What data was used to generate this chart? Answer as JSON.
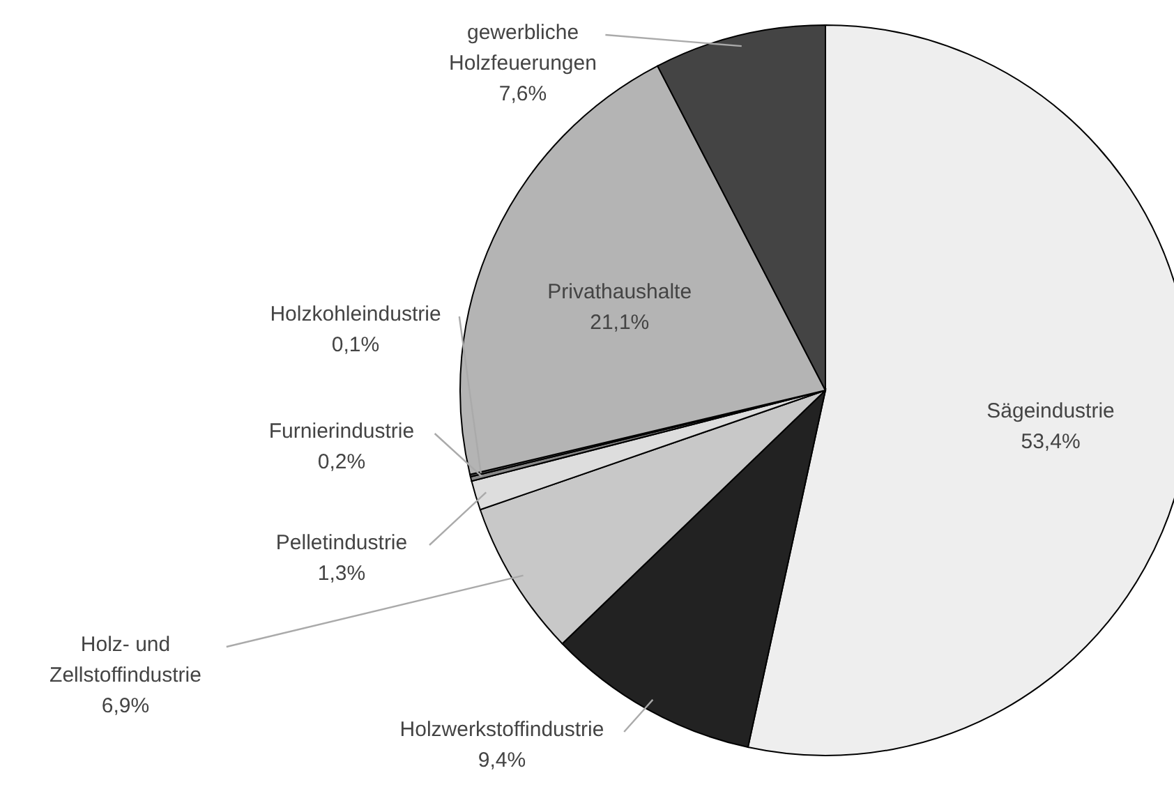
{
  "chart_data": {
    "type": "pie",
    "categories": [
      "Sägeindustrie",
      "Holzwerkstoffindustrie",
      "Holz- und Zellstoffindustrie",
      "Pelletindustrie",
      "Furnierindustrie",
      "Holzkohleindustrie",
      "Privathaushalte",
      "gewerbliche Holzfeuerungen"
    ],
    "values": [
      53.4,
      9.4,
      6.9,
      1.3,
      0.2,
      0.1,
      21.1,
      7.6
    ],
    "colors": [
      "#eeeeee",
      "#222222",
      "#c8c8c8",
      "#dddddd",
      "#888888",
      "#555555",
      "#b4b4b4",
      "#444444"
    ],
    "value_labels": [
      "53,4%",
      "9,4%",
      "6,9%",
      "1,3%",
      "0,2%",
      "0,1%",
      "21,1%",
      "7,6%"
    ]
  }
}
